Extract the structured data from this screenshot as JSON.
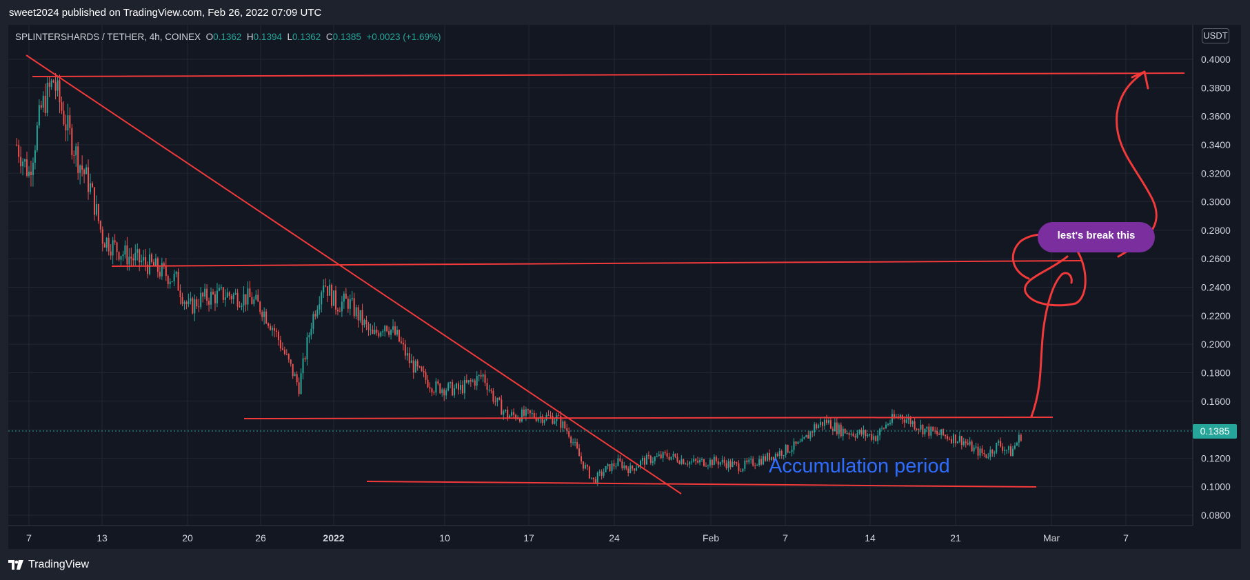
{
  "header": {
    "publisher_line": "sweet2024 published on TradingView.com, Feb 26, 2022 07:09 UTC"
  },
  "legend": {
    "symbol": "SPLINTERSHARDS / TETHER, 4h, COINEX",
    "o_label": "O",
    "o_value": "0.1362",
    "h_label": "H",
    "h_value": "0.1394",
    "l_label": "L",
    "l_value": "0.1362",
    "c_label": "C",
    "c_value": "0.1385",
    "change": "+0.0023 (+1.69%)"
  },
  "price_axis": {
    "unit": "USDT",
    "last_price": "0.1385"
  },
  "annotations": {
    "callout": "lest's break this",
    "accumulation": "Accumulation period"
  },
  "footer": {
    "brand": "TradingView"
  },
  "colors": {
    "background": "#131722",
    "frame": "#1e222d",
    "up": "#26a69a",
    "down": "#ef5350",
    "trendline": "#f23a3a",
    "callout": "#7b2f9e",
    "accumulation_text": "#2f6dff"
  },
  "chart_data": {
    "type": "candlestick",
    "interval": "4h",
    "y_ticks": [
      "0.4000",
      "0.3800",
      "0.3600",
      "0.3400",
      "0.3200",
      "0.3000",
      "0.2800",
      "0.2600",
      "0.2400",
      "0.2200",
      "0.2000",
      "0.1800",
      "0.1600",
      "0.1400",
      "0.1200",
      "0.1000",
      "0.0800"
    ],
    "ylim": [
      0.07,
      0.41
    ],
    "x_ticks": [
      "7",
      "13",
      "20",
      "26",
      "2022",
      "10",
      "17",
      "24",
      "Feb",
      "7",
      "14",
      "21",
      "Mar",
      "7"
    ],
    "grid": true,
    "close_series": [
      {
        "x": "Dec 6",
        "y": 0.34
      },
      {
        "x": "Dec 7",
        "y": 0.32
      },
      {
        "x": "Dec 8",
        "y": 0.365
      },
      {
        "x": "Dec 9",
        "y": 0.385
      },
      {
        "x": "Dec 10",
        "y": 0.355
      },
      {
        "x": "Dec 11",
        "y": 0.33
      },
      {
        "x": "Dec 12",
        "y": 0.31
      },
      {
        "x": "Dec 13",
        "y": 0.275
      },
      {
        "x": "Dec 14",
        "y": 0.268
      },
      {
        "x": "Dec 15",
        "y": 0.262
      },
      {
        "x": "Dec 17",
        "y": 0.255
      },
      {
        "x": "Dec 19",
        "y": 0.245
      },
      {
        "x": "Dec 20",
        "y": 0.225
      },
      {
        "x": "Dec 21",
        "y": 0.232
      },
      {
        "x": "Dec 23",
        "y": 0.235
      },
      {
        "x": "Dec 25",
        "y": 0.232
      },
      {
        "x": "Dec 26",
        "y": 0.225
      },
      {
        "x": "Dec 27",
        "y": 0.21
      },
      {
        "x": "Dec 28",
        "y": 0.19
      },
      {
        "x": "Dec 29",
        "y": 0.17
      },
      {
        "x": "Dec 30",
        "y": 0.215
      },
      {
        "x": "Dec 31",
        "y": 0.245
      },
      {
        "x": "Jan 1",
        "y": 0.228
      },
      {
        "x": "Jan 2",
        "y": 0.23
      },
      {
        "x": "Jan 3",
        "y": 0.218
      },
      {
        "x": "Jan 4",
        "y": 0.205
      },
      {
        "x": "Jan 5",
        "y": 0.215
      },
      {
        "x": "Jan 6",
        "y": 0.205
      },
      {
        "x": "Jan 7",
        "y": 0.188
      },
      {
        "x": "Jan 8",
        "y": 0.178
      },
      {
        "x": "Jan 9",
        "y": 0.17
      },
      {
        "x": "Jan 11",
        "y": 0.168
      },
      {
        "x": "Jan 13",
        "y": 0.178
      },
      {
        "x": "Jan 14",
        "y": 0.16
      },
      {
        "x": "Jan 15",
        "y": 0.15
      },
      {
        "x": "Jan 17",
        "y": 0.15
      },
      {
        "x": "Jan 19",
        "y": 0.148
      },
      {
        "x": "Jan 20",
        "y": 0.138
      },
      {
        "x": "Jan 21",
        "y": 0.118
      },
      {
        "x": "Jan 22",
        "y": 0.104
      },
      {
        "x": "Jan 23",
        "y": 0.112
      },
      {
        "x": "Jan 24",
        "y": 0.117
      },
      {
        "x": "Jan 25",
        "y": 0.112
      },
      {
        "x": "Jan 26",
        "y": 0.118
      },
      {
        "x": "Jan 28",
        "y": 0.122
      },
      {
        "x": "Jan 30",
        "y": 0.117
      },
      {
        "x": "Feb 1",
        "y": 0.118
      },
      {
        "x": "Feb 3",
        "y": 0.114
      },
      {
        "x": "Feb 5",
        "y": 0.12
      },
      {
        "x": "Feb 7",
        "y": 0.127
      },
      {
        "x": "Feb 8",
        "y": 0.13
      },
      {
        "x": "Feb 9",
        "y": 0.142
      },
      {
        "x": "Feb 10",
        "y": 0.146
      },
      {
        "x": "Feb 11",
        "y": 0.14
      },
      {
        "x": "Feb 12",
        "y": 0.138
      },
      {
        "x": "Feb 13",
        "y": 0.137
      },
      {
        "x": "Feb 14",
        "y": 0.135
      },
      {
        "x": "Feb 15",
        "y": 0.145
      },
      {
        "x": "Feb 16",
        "y": 0.15
      },
      {
        "x": "Feb 17",
        "y": 0.145
      },
      {
        "x": "Feb 18",
        "y": 0.14
      },
      {
        "x": "Feb 19",
        "y": 0.137
      },
      {
        "x": "Feb 20",
        "y": 0.135
      },
      {
        "x": "Feb 21",
        "y": 0.133
      },
      {
        "x": "Feb 22",
        "y": 0.126
      },
      {
        "x": "Feb 23",
        "y": 0.122
      },
      {
        "x": "Feb 24",
        "y": 0.13
      },
      {
        "x": "Feb 25",
        "y": 0.124
      },
      {
        "x": "Feb 26",
        "y": 0.1385
      }
    ]
  }
}
